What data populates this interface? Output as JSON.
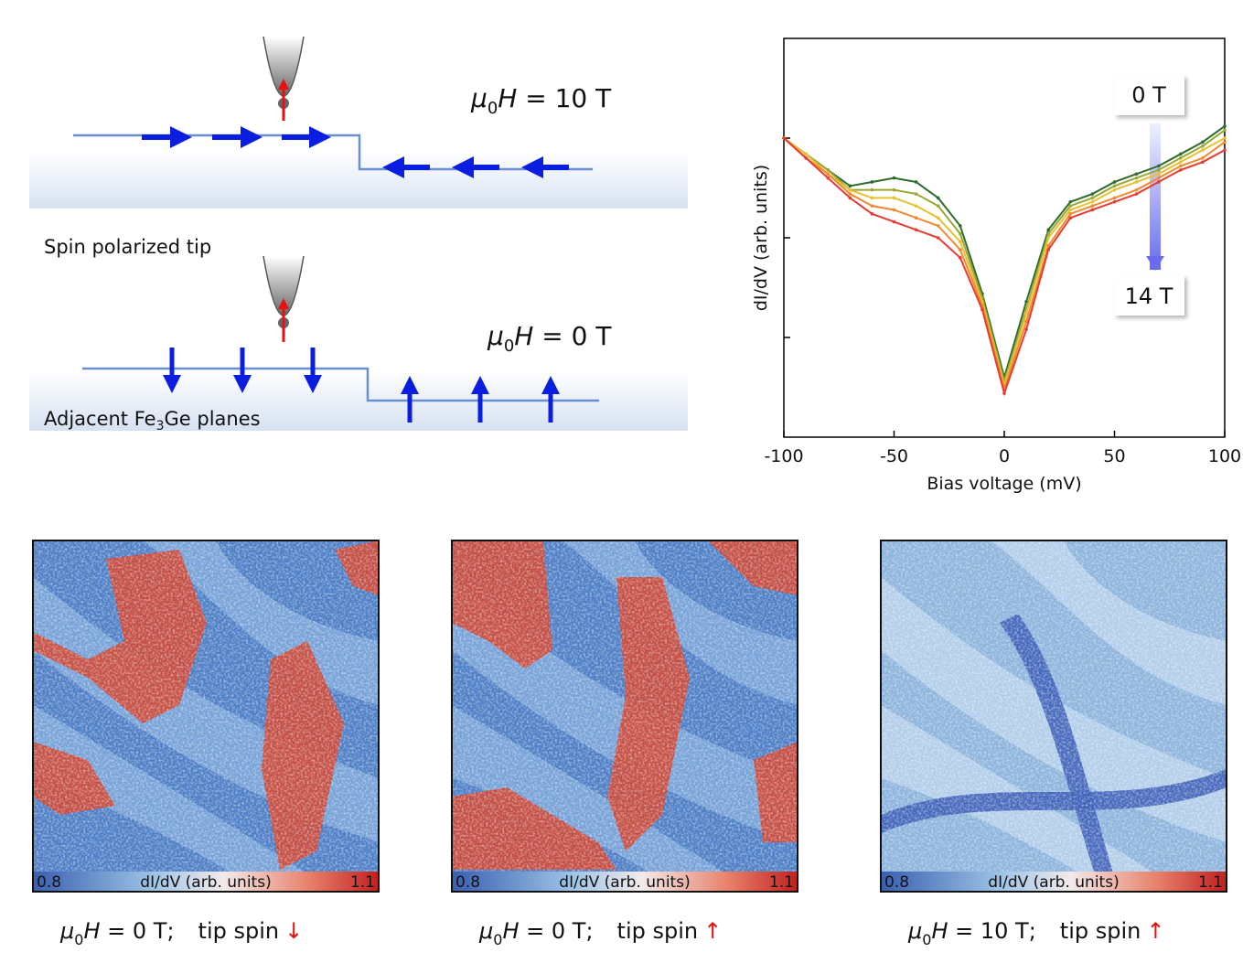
{
  "diagram": {
    "top_field": [
      "μ",
      "0",
      "H",
      " = 10 T"
    ],
    "tip_label": "Spin polarized tip",
    "bottom_field": [
      "μ",
      "0",
      "H",
      " = 0 T"
    ],
    "planes_label": [
      "Adjacent Fe",
      "3",
      "Ge planes"
    ]
  },
  "chart_data": {
    "type": "line",
    "x_label": "Bias voltage (mV)",
    "y_label": "dI/dV (arb. units)",
    "x": [
      -100,
      -90,
      -80,
      -70,
      -60,
      -50,
      -40,
      -30,
      -20,
      -10,
      0,
      10,
      20,
      30,
      40,
      50,
      60,
      70,
      80,
      90,
      100
    ],
    "series": [
      {
        "color": "#2e6b2e",
        "values": [
          7.5,
          7.1,
          6.7,
          6.3,
          6.4,
          6.5,
          6.4,
          6.0,
          5.3,
          3.6,
          1.5,
          3.4,
          5.2,
          5.9,
          6.1,
          6.4,
          6.6,
          6.8,
          7.1,
          7.4,
          7.8
        ]
      },
      {
        "color": "#9aa832",
        "values": [
          7.5,
          7.1,
          6.7,
          6.2,
          6.2,
          6.2,
          6.1,
          5.8,
          5.1,
          3.5,
          1.4,
          3.2,
          5.1,
          5.8,
          6.0,
          6.3,
          6.5,
          6.7,
          7.0,
          7.3,
          7.7
        ]
      },
      {
        "color": "#e8c030",
        "values": [
          7.5,
          7.1,
          6.6,
          6.2,
          6.0,
          6.0,
          5.8,
          5.5,
          4.9,
          3.4,
          1.3,
          3.1,
          5.0,
          5.7,
          5.9,
          6.2,
          6.4,
          6.6,
          6.9,
          7.2,
          7.5
        ]
      },
      {
        "color": "#f08a30",
        "values": [
          7.5,
          7.0,
          6.6,
          6.1,
          5.8,
          5.7,
          5.5,
          5.3,
          4.7,
          3.3,
          1.2,
          2.9,
          4.8,
          5.6,
          5.8,
          6.0,
          6.2,
          6.5,
          6.8,
          7.0,
          7.4
        ]
      },
      {
        "color": "#e83a30",
        "values": [
          7.5,
          7.0,
          6.5,
          6.0,
          5.6,
          5.4,
          5.2,
          5.0,
          4.5,
          3.2,
          1.1,
          2.7,
          4.7,
          5.5,
          5.7,
          5.9,
          6.1,
          6.4,
          6.7,
          6.9,
          7.2
        ]
      }
    ],
    "annotations": [
      "0 T",
      "14 T"
    ],
    "xlim": [
      -100,
      100
    ],
    "xticks": [
      -100,
      -50,
      0,
      50,
      100
    ],
    "ylim": [
      0,
      10
    ]
  },
  "maps": [
    {
      "colorbar": {
        "min": 0.8,
        "label": "dI/dV (arb. units)",
        "max": 1.1
      },
      "caption": [
        "μ",
        "0",
        "H",
        " = 0 T;",
        "tip spin",
        "↓"
      ]
    },
    {
      "colorbar": {
        "min": 0.8,
        "label": "dI/dV (arb. units)",
        "max": 1.1
      },
      "caption": [
        "μ",
        "0",
        "H",
        " = 0 T;",
        "tip spin",
        "↑"
      ]
    },
    {
      "colorbar": {
        "min": 0.8,
        "label": "dI/dV (arb. units)",
        "max": 1.1
      },
      "caption": [
        "μ",
        "0",
        "H",
        " = 10 T;",
        "tip spin",
        "↑"
      ]
    }
  ]
}
